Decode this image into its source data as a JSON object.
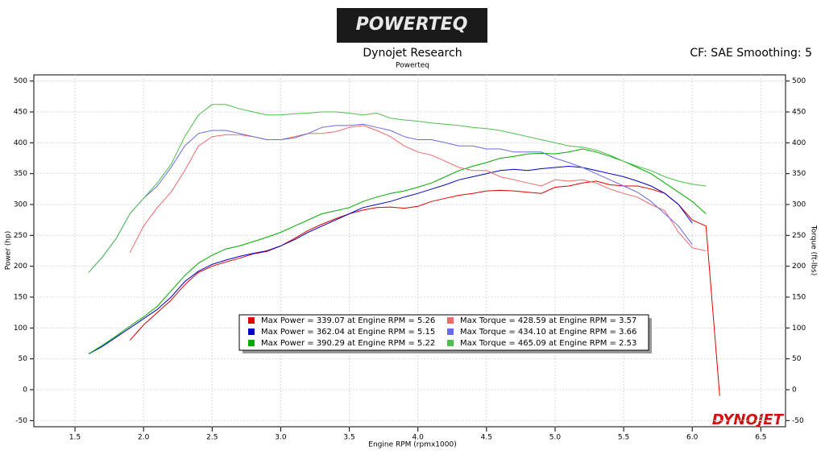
{
  "logo": "POWERTEQ",
  "chart_data": {
    "type": "line",
    "title": "Dynojet Research",
    "subtitle": "Powerteq",
    "annotation": "CF: SAE Smoothing: 5",
    "brand": "DYNOJET",
    "x_label": "Engine RPM (rpmx1000)",
    "y_label": "Power (hp)",
    "y2_label": "Torque (ft-lbs)",
    "xlim": [
      1.2,
      6.68
    ],
    "ylim": [
      -60,
      510
    ],
    "y2lim": [
      -60,
      510
    ],
    "xticks": [
      1.5,
      {
        "value": 2,
        "label": "2.0"
      },
      2.5,
      {
        "value": 3,
        "label": "3.0"
      },
      3.5,
      {
        "value": 4,
        "label": "4.0"
      },
      4.5,
      {
        "value": 5,
        "label": "5.0"
      },
      5.5,
      {
        "value": 6,
        "label": "6.0"
      },
      6.5
    ],
    "yticks": [
      -50,
      0,
      50,
      100,
      150,
      200,
      250,
      300,
      350,
      400,
      450,
      500
    ],
    "y2ticks": [
      -50,
      0,
      50,
      100,
      150,
      200,
      250,
      300,
      350,
      400,
      450,
      500
    ],
    "grid": true,
    "x": [
      1.6,
      1.7,
      1.8,
      1.9,
      2.0,
      2.1,
      2.2,
      2.3,
      2.4,
      2.5,
      2.6,
      2.7,
      2.8,
      2.9,
      3.0,
      3.1,
      3.2,
      3.3,
      3.4,
      3.5,
      3.6,
      3.7,
      3.8,
      3.9,
      4.0,
      4.1,
      4.2,
      4.3,
      4.4,
      4.5,
      4.6,
      4.7,
      4.8,
      4.9,
      5.0,
      5.1,
      5.2,
      5.3,
      5.4,
      5.5,
      5.6,
      5.7,
      5.8,
      5.9,
      6.0,
      6.1,
      6.2
    ],
    "series": [
      {
        "name": "Max Power = 339.07 at Engine RPM = 5.26",
        "color": "#e00000",
        "values": [
          null,
          null,
          null,
          80,
          105,
          125,
          145,
          170,
          190,
          200,
          207,
          213,
          220,
          224,
          233,
          245,
          258,
          268,
          277,
          285,
          291,
          295,
          296,
          294,
          297,
          305,
          310,
          315,
          318,
          322,
          323,
          322,
          320,
          318,
          328,
          330,
          335,
          338,
          332,
          330,
          330,
          325,
          318,
          300,
          275,
          265,
          -10
        ]
      },
      {
        "name": "Max Power = 362.04 at Engine RPM = 5.15",
        "color": "#0000c8",
        "values": [
          58,
          70,
          85,
          100,
          115,
          130,
          150,
          175,
          192,
          203,
          210,
          216,
          221,
          225,
          233,
          243,
          255,
          265,
          275,
          285,
          295,
          300,
          305,
          312,
          318,
          325,
          332,
          340,
          345,
          350,
          355,
          357,
          355,
          358,
          360,
          362,
          360,
          355,
          350,
          345,
          338,
          330,
          318,
          300,
          270,
          null,
          null
        ]
      },
      {
        "name": "Max Power = 390.29 at Engine RPM = 5.22",
        "color": "#00aa00",
        "values": [
          58,
          72,
          87,
          103,
          118,
          135,
          160,
          185,
          205,
          218,
          228,
          233,
          240,
          247,
          255,
          265,
          275,
          285,
          290,
          295,
          305,
          312,
          318,
          322,
          328,
          335,
          345,
          355,
          362,
          368,
          375,
          378,
          382,
          383,
          382,
          385,
          390,
          385,
          378,
          370,
          360,
          350,
          335,
          320,
          305,
          285,
          null
        ]
      },
      {
        "name": "Max Torque = 428.59 at Engine RPM = 3.57",
        "color": "#f06a6a",
        "values": [
          null,
          null,
          null,
          222,
          265,
          295,
          320,
          355,
          395,
          410,
          413,
          413,
          410,
          405,
          405,
          410,
          415,
          415,
          418,
          425,
          428,
          420,
          410,
          395,
          385,
          380,
          370,
          360,
          355,
          355,
          345,
          340,
          335,
          330,
          340,
          338,
          340,
          335,
          325,
          318,
          312,
          300,
          290,
          255,
          230,
          225,
          null
        ]
      },
      {
        "name": "Max Torque = 434.10 at Engine RPM = 3.66",
        "color": "#6a6ae6",
        "values": [
          190,
          215,
          245,
          285,
          310,
          330,
          360,
          395,
          415,
          420,
          420,
          415,
          410,
          405,
          405,
          408,
          415,
          425,
          428,
          428,
          430,
          425,
          420,
          410,
          405,
          405,
          400,
          395,
          395,
          390,
          390,
          385,
          385,
          385,
          375,
          368,
          360,
          350,
          340,
          330,
          320,
          305,
          285,
          265,
          235,
          null,
          null
        ]
      },
      {
        "name": "Max Torque = 465.09 at Engine RPM = 2.53",
        "color": "#4cc04c",
        "values": [
          190,
          215,
          245,
          285,
          310,
          335,
          365,
          410,
          445,
          462,
          462,
          455,
          450,
          445,
          445,
          447,
          448,
          450,
          450,
          448,
          445,
          448,
          440,
          437,
          435,
          432,
          430,
          428,
          425,
          423,
          420,
          415,
          410,
          405,
          400,
          395,
          393,
          388,
          380,
          370,
          362,
          355,
          345,
          338,
          333,
          330,
          null
        ]
      }
    ]
  }
}
